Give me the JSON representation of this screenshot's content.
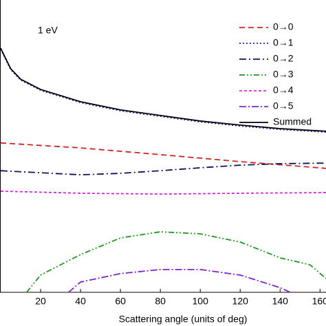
{
  "chart_data": {
    "type": "line",
    "annotation": "1 eV",
    "x_label": "Scattering angle (units of deg)",
    "xlim": [
      0,
      163
    ],
    "xticks": [
      20,
      40,
      60,
      80,
      100,
      120,
      140,
      160
    ],
    "ylim": [
      0,
      100
    ],
    "legend": "upper right",
    "series": [
      {
        "name": "0→0",
        "color": "#d62020",
        "dash": "8,5",
        "x": [
          0,
          40,
          80,
          120,
          163
        ],
        "values": [
          51.1,
          49.4,
          47.1,
          44.7,
          42.4
        ]
      },
      {
        "name": "0→1",
        "color": "#2020c0",
        "dash": "2,3",
        "x": [
          0,
          5,
          10,
          20,
          40,
          60,
          80,
          100,
          120,
          140,
          163
        ],
        "values": [
          83.2,
          76.2,
          72.6,
          69.1,
          64.9,
          62.1,
          60.2,
          58.3,
          56.9,
          55.7,
          54.8
        ]
      },
      {
        "name": "0→2",
        "color": "#101060",
        "dash": "10,4,2,4",
        "x": [
          0,
          40,
          60,
          80,
          100,
          120,
          140,
          163
        ],
        "values": [
          41.6,
          40.2,
          40.7,
          41.6,
          42.6,
          43.5,
          44.0,
          44.2
        ]
      },
      {
        "name": "0→3",
        "color": "#1a9a1a",
        "dash": "8,3,2,3,2,3",
        "x": [
          13,
          20,
          40,
          60,
          80,
          100,
          120,
          140,
          155,
          163
        ],
        "values": [
          0,
          5.9,
          12.9,
          18.6,
          20.7,
          20.0,
          17.2,
          11.8,
          9.4,
          4.7
        ]
      },
      {
        "name": "0→4",
        "color": "#e020e0",
        "dash": "4,3",
        "x": [
          0,
          40,
          80,
          120,
          163
        ],
        "values": [
          34.6,
          33.9,
          33.6,
          33.9,
          34.1
        ]
      },
      {
        "name": "0→5",
        "color": "#8020d0",
        "dash": "10,3,2,3",
        "x": [
          34,
          40,
          60,
          80,
          100,
          120,
          140,
          145
        ],
        "values": [
          0,
          3.5,
          6.4,
          7.8,
          7.8,
          5.9,
          1.6,
          0
        ]
      },
      {
        "name": "Summed",
        "color": "#000000",
        "dash": "",
        "x": [
          0,
          5,
          10,
          20,
          40,
          60,
          80,
          100,
          120,
          140,
          163
        ],
        "values": [
          83.5,
          76.5,
          72.9,
          69.4,
          65.2,
          62.4,
          60.5,
          58.6,
          57.2,
          56.0,
          55.1
        ]
      }
    ]
  }
}
